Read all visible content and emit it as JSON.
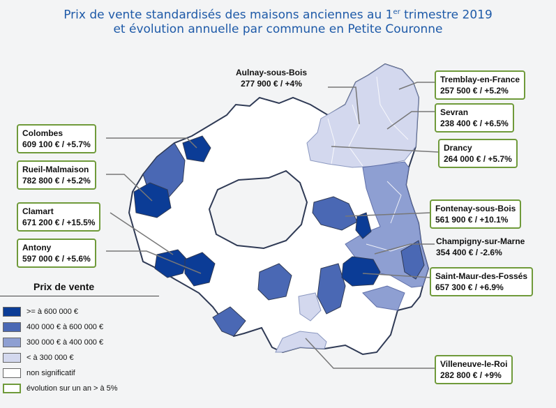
{
  "title": {
    "line1_pre": "Prix de vente standardisés des maisons anciennes au 1",
    "line1_sup": "er",
    "line1_post": " trimestre 2019",
    "line2": "et évolution annuelle par commune en Petite Couronne"
  },
  "colors": {
    "class1": "#0b3c96",
    "class2": "#4a68b4",
    "class3": "#8e9fd2",
    "class4": "#d3d8ee",
    "nonsig": "#ffffff",
    "border": "#2f3a55",
    "callout_border": "#6f9a3a",
    "title": "#1e5aa8"
  },
  "callouts": [
    {
      "name": "Aulnay-sous-Bois",
      "value": "277 900 € / +4%",
      "boxed": false
    },
    {
      "name": "Tremblay-en-France",
      "value": "257 500 € / +5.2%",
      "boxed": true
    },
    {
      "name": "Sevran",
      "value": "238 400 € / +6.5%",
      "boxed": true
    },
    {
      "name": "Drancy",
      "value": "264 000 € / +5.7%",
      "boxed": true
    },
    {
      "name": "Colombes",
      "value": "609 100 € / +5.7%",
      "boxed": true
    },
    {
      "name": "Rueil-Malmaison",
      "value": "782 800 € / +5.2%",
      "boxed": true
    },
    {
      "name": "Clamart",
      "value": "671 200 € / +15.5%",
      "boxed": true
    },
    {
      "name": "Antony",
      "value": "597 000 € / +5.6%",
      "boxed": true
    },
    {
      "name": "Fontenay-sous-Bois",
      "value": "561 900 € / +10.1%",
      "boxed": true
    },
    {
      "name": "Champigny-sur-Marne",
      "value": "354 400 € / -2.6%",
      "boxed": false
    },
    {
      "name": "Saint-Maur-des-Fossés",
      "value": "657 300 € / +6.9%",
      "boxed": true
    },
    {
      "name": "Villeneuve-le-Roi",
      "value": "282 800 € / +9%",
      "boxed": true
    }
  ],
  "legend": {
    "title": "Prix de vente",
    "items": [
      {
        "label": ">= à 600 000 €",
        "color": "#0b3c96"
      },
      {
        "label": "400 000 € à 600 000 €",
        "color": "#4a68b4"
      },
      {
        "label": "300 000 € à 400 000 €",
        "color": "#8e9fd2"
      },
      {
        "label": "< à 300 000 €",
        "color": "#d3d8ee"
      },
      {
        "label": "non significatif",
        "color": "#ffffff"
      },
      {
        "label": "évolution sur un an > à 5%",
        "color": "#ffffff",
        "outline": "#6f9a3a"
      }
    ]
  }
}
